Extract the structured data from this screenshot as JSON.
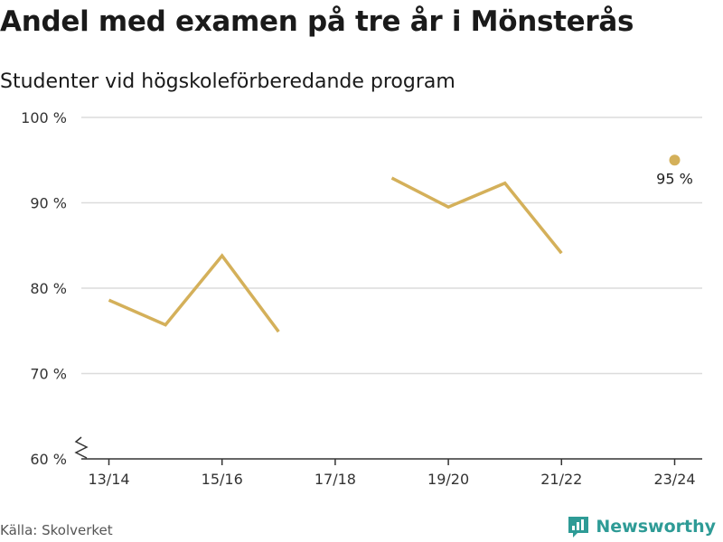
{
  "title": "Andel med examen på tre år i Mönsterås",
  "subtitle": "Studenter vid högskoleförberedande program",
  "source": "Källa: Skolverket",
  "brand": "Newsworthy",
  "colors": {
    "line": "#d4b05a",
    "grid": "#dcdcdc",
    "axis": "#333333",
    "brand": "#2e9b96"
  },
  "chart_data": {
    "type": "line",
    "categories": [
      "13/14",
      "14/15",
      "15/16",
      "16/17",
      "17/18",
      "18/19",
      "19/20",
      "20/21",
      "21/22",
      "22/23",
      "23/24"
    ],
    "x_tick_labels": [
      "13/14",
      "15/16",
      "17/18",
      "19/20",
      "21/22",
      "23/24"
    ],
    "series": [
      {
        "values": [
          78.6,
          75.7,
          83.8,
          74.9,
          null,
          92.9,
          89.5,
          92.3,
          84.1,
          null,
          95
        ]
      }
    ],
    "y_ticks": [
      60,
      70,
      80,
      90,
      100
    ],
    "y_tick_labels": [
      "60 %",
      "70 %",
      "80 %",
      "90 %",
      "100 %"
    ],
    "ylim": [
      60,
      100
    ],
    "axis_break": true,
    "annotation": {
      "category": "23/24",
      "value": 95,
      "label": "95 %"
    },
    "grid": true
  }
}
